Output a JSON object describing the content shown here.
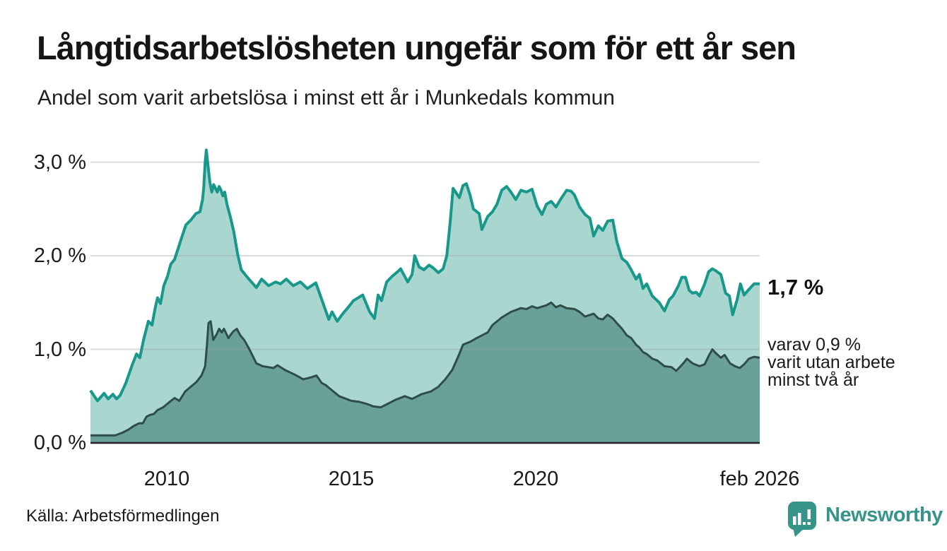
{
  "header": {
    "title": "Långtidsarbetslösheten ungefär som för ett år sen",
    "subtitle": "Andel som varit arbetslösa i minst ett år i Munkedals kommun"
  },
  "annotations": {
    "primary": "1,7 %",
    "secondary": "varav 0,9 %\nvarit utan arbete\nminst två år"
  },
  "footer": {
    "source": "Källa: Arbetsförmedlingen",
    "logo_text": "Newsworthy"
  },
  "colors": {
    "series_one_year_line": "#17988a",
    "series_one_year_fill": "#a9d6cf",
    "series_two_year_line": "#2e4d49",
    "series_two_year_fill": "#69a19a",
    "gridline": "#9aa3a7",
    "axis": "#222222",
    "brand_teal": "#37948b",
    "text": "#1a1a1a"
  },
  "chart_data": {
    "type": "area",
    "title": "Långtidsarbetslösheten ungefär som för ett år sen",
    "subtitle": "Andel som varit arbetslösa i minst ett år i Munkedals kommun",
    "source": "Källa: Arbetsförmedlingen",
    "unit": "%",
    "xlim": [
      2007.93,
      2026.08
    ],
    "ylim": [
      0,
      3.3
    ],
    "grid": "horizontal",
    "y_ticks": [
      {
        "label": "0,0 %",
        "value": 0
      },
      {
        "label": "1,0 %",
        "value": 1
      },
      {
        "label": "2,0 %",
        "value": 2
      },
      {
        "label": "3,0 %",
        "value": 3
      }
    ],
    "x_ticks": [
      {
        "label": "2010",
        "year": 2010
      },
      {
        "label": "2015",
        "year": 2015
      },
      {
        "label": "2020",
        "year": 2020
      },
      {
        "label": "feb 2026",
        "year": 2026.08
      }
    ],
    "series": [
      {
        "name": "Andel som varit arbetslösa i minst ett år",
        "end_label": "1,7 %",
        "end_value": 1.7,
        "line_color": "#17988a",
        "fill_color": "#a9d6cf",
        "points": [
          [
            2007.93,
            0.56
          ],
          [
            2008.12,
            0.45
          ],
          [
            2008.3,
            0.53
          ],
          [
            2008.41,
            0.47
          ],
          [
            2008.54,
            0.52
          ],
          [
            2008.64,
            0.47
          ],
          [
            2008.74,
            0.51
          ],
          [
            2008.89,
            0.64
          ],
          [
            2009.06,
            0.83
          ],
          [
            2009.18,
            0.95
          ],
          [
            2009.27,
            0.91
          ],
          [
            2009.37,
            1.1
          ],
          [
            2009.5,
            1.3
          ],
          [
            2009.6,
            1.26
          ],
          [
            2009.69,
            1.45
          ],
          [
            2009.75,
            1.55
          ],
          [
            2009.83,
            1.49
          ],
          [
            2009.92,
            1.68
          ],
          [
            2010.02,
            1.78
          ],
          [
            2010.11,
            1.91
          ],
          [
            2010.21,
            1.96
          ],
          [
            2010.31,
            2.08
          ],
          [
            2010.4,
            2.19
          ],
          [
            2010.52,
            2.33
          ],
          [
            2010.65,
            2.38
          ],
          [
            2010.79,
            2.45
          ],
          [
            2010.9,
            2.47
          ],
          [
            2010.97,
            2.6
          ],
          [
            2011.0,
            2.72
          ],
          [
            2011.04,
            3.0
          ],
          [
            2011.07,
            3.13
          ],
          [
            2011.12,
            2.95
          ],
          [
            2011.17,
            2.78
          ],
          [
            2011.22,
            2.68
          ],
          [
            2011.27,
            2.76
          ],
          [
            2011.32,
            2.72
          ],
          [
            2011.37,
            2.68
          ],
          [
            2011.42,
            2.74
          ],
          [
            2011.47,
            2.7
          ],
          [
            2011.52,
            2.64
          ],
          [
            2011.57,
            2.68
          ],
          [
            2011.63,
            2.55
          ],
          [
            2011.72,
            2.42
          ],
          [
            2011.82,
            2.25
          ],
          [
            2011.92,
            2.02
          ],
          [
            2012.02,
            1.85
          ],
          [
            2012.12,
            1.8
          ],
          [
            2012.25,
            1.74
          ],
          [
            2012.43,
            1.66
          ],
          [
            2012.57,
            1.75
          ],
          [
            2012.76,
            1.68
          ],
          [
            2012.95,
            1.72
          ],
          [
            2013.08,
            1.7
          ],
          [
            2013.24,
            1.75
          ],
          [
            2013.43,
            1.68
          ],
          [
            2013.62,
            1.72
          ],
          [
            2013.81,
            1.65
          ],
          [
            2014.04,
            1.71
          ],
          [
            2014.23,
            1.5
          ],
          [
            2014.39,
            1.32
          ],
          [
            2014.48,
            1.4
          ],
          [
            2014.62,
            1.3
          ],
          [
            2014.77,
            1.38
          ],
          [
            2014.92,
            1.45
          ],
          [
            2015.06,
            1.52
          ],
          [
            2015.31,
            1.58
          ],
          [
            2015.5,
            1.4
          ],
          [
            2015.63,
            1.33
          ],
          [
            2015.73,
            1.58
          ],
          [
            2015.82,
            1.52
          ],
          [
            2015.96,
            1.72
          ],
          [
            2016.11,
            1.78
          ],
          [
            2016.26,
            1.83
          ],
          [
            2016.34,
            1.86
          ],
          [
            2016.53,
            1.72
          ],
          [
            2016.65,
            1.8
          ],
          [
            2016.72,
            2.0
          ],
          [
            2016.84,
            1.88
          ],
          [
            2016.97,
            1.85
          ],
          [
            2017.11,
            1.9
          ],
          [
            2017.22,
            1.87
          ],
          [
            2017.36,
            1.82
          ],
          [
            2017.49,
            1.86
          ],
          [
            2017.59,
            2.0
          ],
          [
            2017.68,
            2.35
          ],
          [
            2017.76,
            2.72
          ],
          [
            2017.83,
            2.68
          ],
          [
            2017.93,
            2.62
          ],
          [
            2018.03,
            2.75
          ],
          [
            2018.12,
            2.77
          ],
          [
            2018.22,
            2.65
          ],
          [
            2018.31,
            2.5
          ],
          [
            2018.47,
            2.45
          ],
          [
            2018.54,
            2.28
          ],
          [
            2018.7,
            2.42
          ],
          [
            2018.83,
            2.47
          ],
          [
            2018.95,
            2.55
          ],
          [
            2019.08,
            2.7
          ],
          [
            2019.21,
            2.74
          ],
          [
            2019.33,
            2.68
          ],
          [
            2019.46,
            2.6
          ],
          [
            2019.6,
            2.7
          ],
          [
            2019.75,
            2.68
          ],
          [
            2019.9,
            2.71
          ],
          [
            2020.04,
            2.53
          ],
          [
            2020.17,
            2.44
          ],
          [
            2020.29,
            2.55
          ],
          [
            2020.42,
            2.58
          ],
          [
            2020.55,
            2.52
          ],
          [
            2020.67,
            2.6
          ],
          [
            2020.84,
            2.7
          ],
          [
            2020.96,
            2.69
          ],
          [
            2021.05,
            2.65
          ],
          [
            2021.19,
            2.52
          ],
          [
            2021.34,
            2.44
          ],
          [
            2021.47,
            2.4
          ],
          [
            2021.57,
            2.21
          ],
          [
            2021.7,
            2.32
          ],
          [
            2021.82,
            2.27
          ],
          [
            2021.95,
            2.37
          ],
          [
            2022.09,
            2.38
          ],
          [
            2022.2,
            2.15
          ],
          [
            2022.34,
            1.97
          ],
          [
            2022.47,
            1.93
          ],
          [
            2022.59,
            1.85
          ],
          [
            2022.72,
            1.75
          ],
          [
            2022.81,
            1.8
          ],
          [
            2022.91,
            1.65
          ],
          [
            2023.01,
            1.7
          ],
          [
            2023.16,
            1.57
          ],
          [
            2023.35,
            1.5
          ],
          [
            2023.49,
            1.41
          ],
          [
            2023.62,
            1.53
          ],
          [
            2023.72,
            1.57
          ],
          [
            2023.87,
            1.68
          ],
          [
            2023.96,
            1.77
          ],
          [
            2024.06,
            1.77
          ],
          [
            2024.16,
            1.63
          ],
          [
            2024.25,
            1.6
          ],
          [
            2024.35,
            1.61
          ],
          [
            2024.44,
            1.57
          ],
          [
            2024.58,
            1.7
          ],
          [
            2024.69,
            1.83
          ],
          [
            2024.79,
            1.86
          ],
          [
            2024.88,
            1.84
          ],
          [
            2025.02,
            1.8
          ],
          [
            2025.15,
            1.6
          ],
          [
            2025.25,
            1.57
          ],
          [
            2025.34,
            1.37
          ],
          [
            2025.46,
            1.53
          ],
          [
            2025.55,
            1.7
          ],
          [
            2025.65,
            1.58
          ],
          [
            2025.78,
            1.64
          ],
          [
            2025.92,
            1.7
          ],
          [
            2026.08,
            1.7
          ]
        ]
      },
      {
        "name": "varav utan arbete minst två år",
        "end_label": "varav 0,9 % varit utan arbete minst två år",
        "end_value": 0.9,
        "line_color": "#2e4d49",
        "fill_color": "#69a19a",
        "points": [
          [
            2007.93,
            0.08
          ],
          [
            2008.6,
            0.08
          ],
          [
            2008.8,
            0.11
          ],
          [
            2008.95,
            0.14
          ],
          [
            2009.1,
            0.18
          ],
          [
            2009.25,
            0.21
          ],
          [
            2009.35,
            0.21
          ],
          [
            2009.45,
            0.28
          ],
          [
            2009.55,
            0.3
          ],
          [
            2009.65,
            0.31
          ],
          [
            2009.75,
            0.35
          ],
          [
            2009.9,
            0.38
          ],
          [
            2010.02,
            0.42
          ],
          [
            2010.21,
            0.48
          ],
          [
            2010.34,
            0.45
          ],
          [
            2010.5,
            0.55
          ],
          [
            2010.65,
            0.6
          ],
          [
            2010.8,
            0.65
          ],
          [
            2010.94,
            0.72
          ],
          [
            2011.04,
            0.82
          ],
          [
            2011.09,
            1.05
          ],
          [
            2011.13,
            1.28
          ],
          [
            2011.19,
            1.3
          ],
          [
            2011.26,
            1.1
          ],
          [
            2011.35,
            1.16
          ],
          [
            2011.42,
            1.22
          ],
          [
            2011.49,
            1.18
          ],
          [
            2011.55,
            1.22
          ],
          [
            2011.67,
            1.12
          ],
          [
            2011.74,
            1.16
          ],
          [
            2011.8,
            1.19
          ],
          [
            2011.9,
            1.22
          ],
          [
            2011.99,
            1.15
          ],
          [
            2012.1,
            1.1
          ],
          [
            2012.24,
            1.0
          ],
          [
            2012.43,
            0.85
          ],
          [
            2012.6,
            0.82
          ],
          [
            2012.89,
            0.8
          ],
          [
            2013.0,
            0.83
          ],
          [
            2013.2,
            0.78
          ],
          [
            2013.47,
            0.73
          ],
          [
            2013.7,
            0.68
          ],
          [
            2013.9,
            0.7
          ],
          [
            2014.06,
            0.72
          ],
          [
            2014.2,
            0.64
          ],
          [
            2014.3,
            0.62
          ],
          [
            2014.67,
            0.5
          ],
          [
            2015.0,
            0.45
          ],
          [
            2015.2,
            0.44
          ],
          [
            2015.4,
            0.42
          ],
          [
            2015.6,
            0.39
          ],
          [
            2015.8,
            0.38
          ],
          [
            2016.0,
            0.42
          ],
          [
            2016.2,
            0.46
          ],
          [
            2016.45,
            0.5
          ],
          [
            2016.65,
            0.47
          ],
          [
            2016.9,
            0.52
          ],
          [
            2017.16,
            0.55
          ],
          [
            2017.36,
            0.6
          ],
          [
            2017.55,
            0.68
          ],
          [
            2017.74,
            0.78
          ],
          [
            2017.93,
            0.95
          ],
          [
            2018.03,
            1.05
          ],
          [
            2018.22,
            1.08
          ],
          [
            2018.4,
            1.12
          ],
          [
            2018.7,
            1.18
          ],
          [
            2018.83,
            1.26
          ],
          [
            2019.08,
            1.34
          ],
          [
            2019.33,
            1.4
          ],
          [
            2019.6,
            1.44
          ],
          [
            2019.75,
            1.43
          ],
          [
            2019.9,
            1.46
          ],
          [
            2020.04,
            1.44
          ],
          [
            2020.29,
            1.47
          ],
          [
            2020.42,
            1.5
          ],
          [
            2020.55,
            1.45
          ],
          [
            2020.67,
            1.47
          ],
          [
            2020.84,
            1.44
          ],
          [
            2021.05,
            1.43
          ],
          [
            2021.19,
            1.4
          ],
          [
            2021.34,
            1.35
          ],
          [
            2021.57,
            1.38
          ],
          [
            2021.7,
            1.33
          ],
          [
            2021.82,
            1.32
          ],
          [
            2021.95,
            1.37
          ],
          [
            2022.09,
            1.33
          ],
          [
            2022.2,
            1.28
          ],
          [
            2022.34,
            1.22
          ],
          [
            2022.47,
            1.15
          ],
          [
            2022.59,
            1.12
          ],
          [
            2022.72,
            1.05
          ],
          [
            2022.81,
            1.02
          ],
          [
            2022.91,
            0.97
          ],
          [
            2023.01,
            0.95
          ],
          [
            2023.16,
            0.9
          ],
          [
            2023.3,
            0.88
          ],
          [
            2023.49,
            0.82
          ],
          [
            2023.68,
            0.81
          ],
          [
            2023.81,
            0.77
          ],
          [
            2024.0,
            0.85
          ],
          [
            2024.1,
            0.9
          ],
          [
            2024.25,
            0.85
          ],
          [
            2024.44,
            0.82
          ],
          [
            2024.58,
            0.84
          ],
          [
            2024.69,
            0.93
          ],
          [
            2024.79,
            1.0
          ],
          [
            2024.88,
            0.96
          ],
          [
            2025.02,
            0.91
          ],
          [
            2025.12,
            0.94
          ],
          [
            2025.27,
            0.85
          ],
          [
            2025.4,
            0.82
          ],
          [
            2025.53,
            0.8
          ],
          [
            2025.65,
            0.84
          ],
          [
            2025.78,
            0.9
          ],
          [
            2025.92,
            0.92
          ],
          [
            2026.08,
            0.91
          ]
        ]
      }
    ]
  }
}
